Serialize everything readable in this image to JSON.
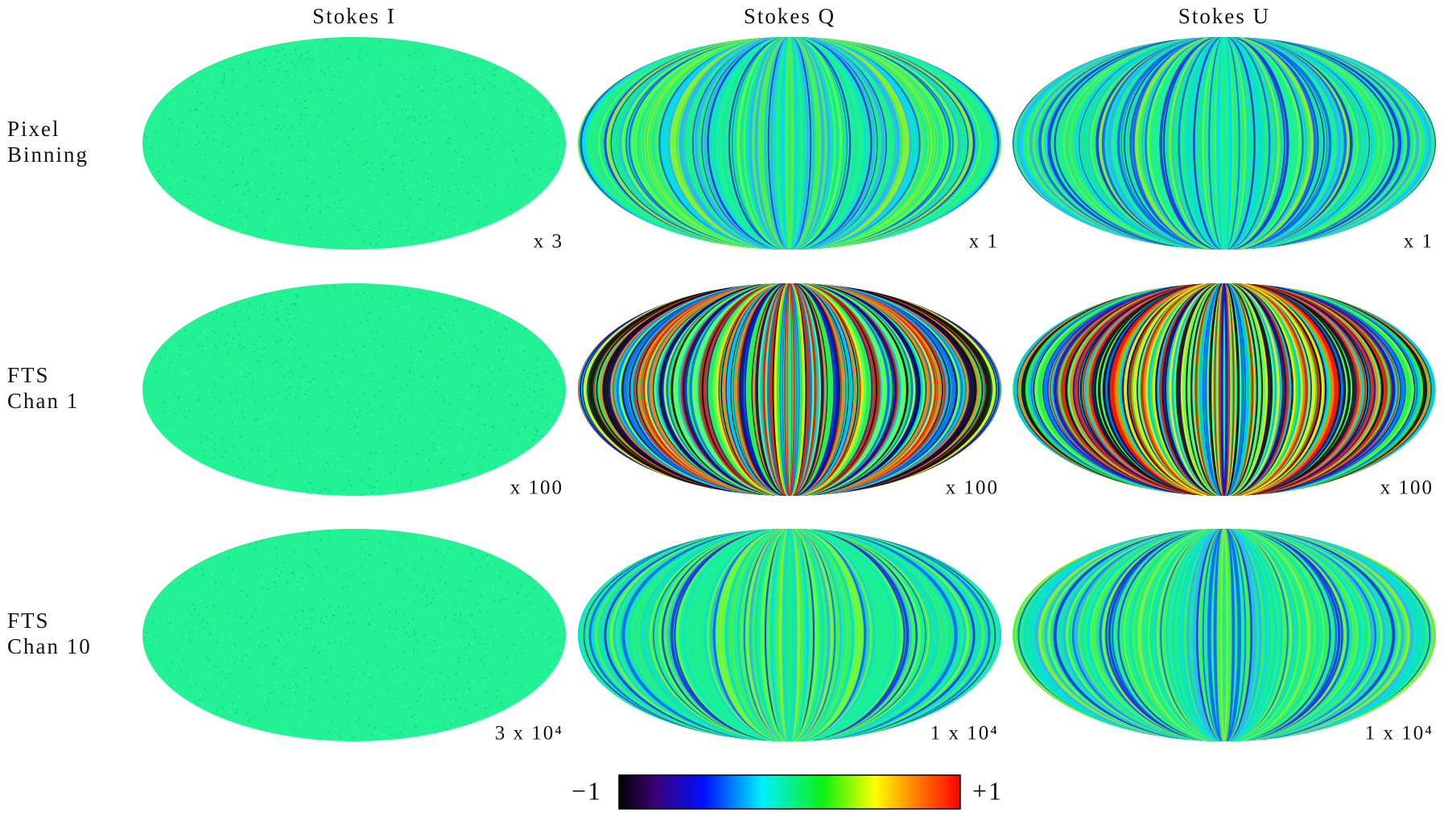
{
  "columns": [
    "Stokes I",
    "Stokes Q",
    "Stokes U"
  ],
  "rows": [
    {
      "label": [
        "Pixel",
        "Binning"
      ],
      "scales": [
        "x 3",
        "x 1",
        "x 1"
      ]
    },
    {
      "label": [
        "FTS",
        "Chan 1"
      ],
      "scales": [
        "x 100",
        "x 100",
        "x 100"
      ]
    },
    {
      "label": [
        "FTS",
        "Chan 10"
      ],
      "scales": [
        "3 x 10⁴",
        "1 x 10⁴",
        "1 x 10⁴"
      ]
    }
  ],
  "colorbar": {
    "min_label": "−1",
    "max_label": "+1"
  }
}
